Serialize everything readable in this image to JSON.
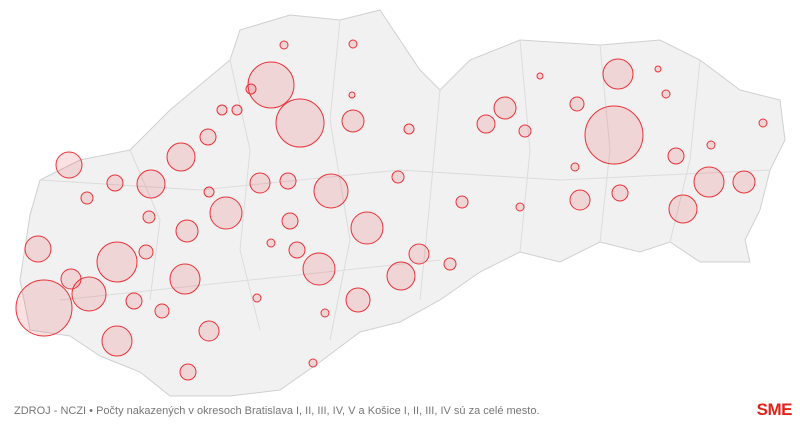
{
  "chart_data": {
    "type": "bubble-map",
    "values": [
      23,
      24,
      28,
      29,
      20,
      17,
      17,
      15,
      14,
      15,
      16,
      16,
      16,
      14,
      14,
      13,
      13,
      14,
      15,
      15,
      12,
      11,
      11,
      11,
      10,
      11,
      10,
      10,
      10,
      10,
      8,
      9,
      8,
      8,
      8,
      8,
      8,
      8,
      8,
      7,
      7,
      8,
      7,
      6,
      6,
      6,
      5,
      6,
      6,
      6,
      5,
      5,
      5,
      5,
      4,
      4,
      4,
      4,
      4,
      4,
      4,
      3,
      3,
      4,
      4,
      3,
      4,
      4
    ],
    "color": "#e8333a",
    "source": "ZDROJ - NCZI • Počty nakazených v okresoch Bratislava I, II, III, IV, V a Košice I, II, III, IV sú za celé mesto.",
    "logo": "SME"
  }
}
